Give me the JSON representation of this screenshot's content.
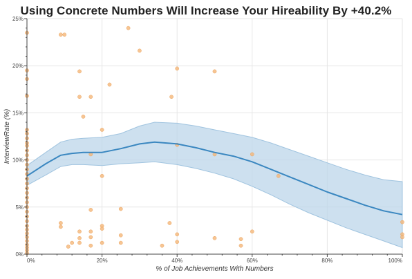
{
  "chart_data": {
    "type": "scatter",
    "title": "Using Concrete Numbers Will Increase Your Hireability By +40.2%",
    "xlabel": "% of Job Achievements With Numbers",
    "ylabel": "InterviewRate (%)",
    "xlim": [
      0,
      100
    ],
    "ylim": [
      0,
      25
    ],
    "x_ticks": [
      0,
      20,
      40,
      60,
      80,
      100
    ],
    "x_tick_labels": [
      "0%",
      "20%",
      "40%",
      "60%",
      "80%",
      "100%"
    ],
    "y_ticks": [
      0,
      5,
      10,
      15,
      20,
      25
    ],
    "y_tick_labels": [
      "0%",
      "5%",
      "10%",
      "15%",
      "20%",
      "25%"
    ],
    "grid": true,
    "colors": {
      "points": "#f5b678",
      "line": "#3a87c0",
      "band": "#bcd6ea",
      "band_edge": "#9fc3df",
      "grid": "#e6e6e6"
    },
    "scatter_points": [
      {
        "x": 0,
        "y": 23.5
      },
      {
        "x": 0,
        "y": 19.5
      },
      {
        "x": 0,
        "y": 18.6
      },
      {
        "x": 0,
        "y": 16.8
      },
      {
        "x": 0,
        "y": 13.2
      },
      {
        "x": 0,
        "y": 12.8
      },
      {
        "x": 0,
        "y": 12.3
      },
      {
        "x": 0,
        "y": 11.8
      },
      {
        "x": 0,
        "y": 11.5
      },
      {
        "x": 0,
        "y": 11.0
      },
      {
        "x": 0,
        "y": 10.5
      },
      {
        "x": 0,
        "y": 10.0
      },
      {
        "x": 0,
        "y": 9.5
      },
      {
        "x": 0,
        "y": 9.0
      },
      {
        "x": 0,
        "y": 8.5
      },
      {
        "x": 0,
        "y": 8.0
      },
      {
        "x": 0,
        "y": 7.5
      },
      {
        "x": 0,
        "y": 7.0
      },
      {
        "x": 0,
        "y": 6.5
      },
      {
        "x": 0,
        "y": 6.0
      },
      {
        "x": 0,
        "y": 5.5
      },
      {
        "x": 0,
        "y": 5.0
      },
      {
        "x": 0,
        "y": 4.5
      },
      {
        "x": 0,
        "y": 4.0
      },
      {
        "x": 0,
        "y": 3.5
      },
      {
        "x": 0,
        "y": 3.0
      },
      {
        "x": 0,
        "y": 2.6
      },
      {
        "x": 0,
        "y": 2.2
      },
      {
        "x": 0,
        "y": 1.8
      },
      {
        "x": 0,
        "y": 1.4
      },
      {
        "x": 0,
        "y": 1.0
      },
      {
        "x": 0,
        "y": 0.7
      },
      {
        "x": 0,
        "y": 0.4
      },
      {
        "x": 0,
        "y": 0.1
      },
      {
        "x": 9,
        "y": 23.3
      },
      {
        "x": 10,
        "y": 23.3
      },
      {
        "x": 27,
        "y": 24.0
      },
      {
        "x": 30,
        "y": 21.6
      },
      {
        "x": 14,
        "y": 19.4
      },
      {
        "x": 40,
        "y": 19.7
      },
      {
        "x": 50,
        "y": 19.4
      },
      {
        "x": 22,
        "y": 18.0
      },
      {
        "x": 14,
        "y": 16.7
      },
      {
        "x": 17,
        "y": 16.7
      },
      {
        "x": 38.5,
        "y": 16.7
      },
      {
        "x": 15,
        "y": 14.6
      },
      {
        "x": 20,
        "y": 13.2
      },
      {
        "x": 17,
        "y": 10.6
      },
      {
        "x": 40,
        "y": 11.6
      },
      {
        "x": 50,
        "y": 10.6
      },
      {
        "x": 60,
        "y": 10.6
      },
      {
        "x": 20,
        "y": 8.3
      },
      {
        "x": 67,
        "y": 8.3
      },
      {
        "x": 17,
        "y": 4.7
      },
      {
        "x": 25,
        "y": 4.8
      },
      {
        "x": 9,
        "y": 3.3
      },
      {
        "x": 9,
        "y": 2.9
      },
      {
        "x": 38,
        "y": 3.3
      },
      {
        "x": 20,
        "y": 3.0
      },
      {
        "x": 20,
        "y": 2.7
      },
      {
        "x": 14,
        "y": 2.4
      },
      {
        "x": 17,
        "y": 2.4
      },
      {
        "x": 60,
        "y": 2.4
      },
      {
        "x": 25,
        "y": 2.0
      },
      {
        "x": 40,
        "y": 2.1
      },
      {
        "x": 14,
        "y": 1.7
      },
      {
        "x": 17,
        "y": 1.8
      },
      {
        "x": 50,
        "y": 1.7
      },
      {
        "x": 57,
        "y": 1.6
      },
      {
        "x": 12,
        "y": 1.2
      },
      {
        "x": 14,
        "y": 1.2
      },
      {
        "x": 20,
        "y": 1.2
      },
      {
        "x": 25,
        "y": 1.2
      },
      {
        "x": 40,
        "y": 1.3
      },
      {
        "x": 11,
        "y": 0.8
      },
      {
        "x": 17,
        "y": 0.9
      },
      {
        "x": 36,
        "y": 0.9
      },
      {
        "x": 57,
        "y": 0.9
      },
      {
        "x": 100,
        "y": 3.4
      },
      {
        "x": 100,
        "y": 2.1
      },
      {
        "x": 100,
        "y": 1.8
      }
    ],
    "trend_line": {
      "x": [
        0,
        5,
        9,
        12,
        15,
        20,
        25,
        30,
        34,
        40,
        45,
        50,
        55,
        60,
        65,
        70,
        75,
        80,
        85,
        90,
        95,
        100
      ],
      "y": [
        8.3,
        9.6,
        10.5,
        10.7,
        10.8,
        10.8,
        11.2,
        11.7,
        11.9,
        11.7,
        11.3,
        10.8,
        10.4,
        9.8,
        9.0,
        8.2,
        7.4,
        6.6,
        5.9,
        5.2,
        4.6,
        4.2
      ]
    },
    "confidence_band": {
      "x": [
        0,
        5,
        9,
        12,
        15,
        20,
        25,
        30,
        34,
        40,
        45,
        50,
        55,
        60,
        65,
        70,
        75,
        80,
        85,
        90,
        95,
        100
      ],
      "lower": [
        7.3,
        8.4,
        9.3,
        9.5,
        9.5,
        9.4,
        9.6,
        9.7,
        9.8,
        9.5,
        9.1,
        8.6,
        8.0,
        7.2,
        6.3,
        5.3,
        4.4,
        3.6,
        2.8,
        2.1,
        1.4,
        0.7
      ],
      "upper": [
        9.4,
        10.8,
        11.9,
        12.2,
        12.3,
        12.4,
        12.8,
        13.6,
        14.0,
        13.9,
        13.6,
        13.2,
        12.8,
        12.4,
        11.8,
        11.1,
        10.4,
        9.7,
        9.0,
        8.4,
        7.9,
        7.7
      ]
    }
  }
}
